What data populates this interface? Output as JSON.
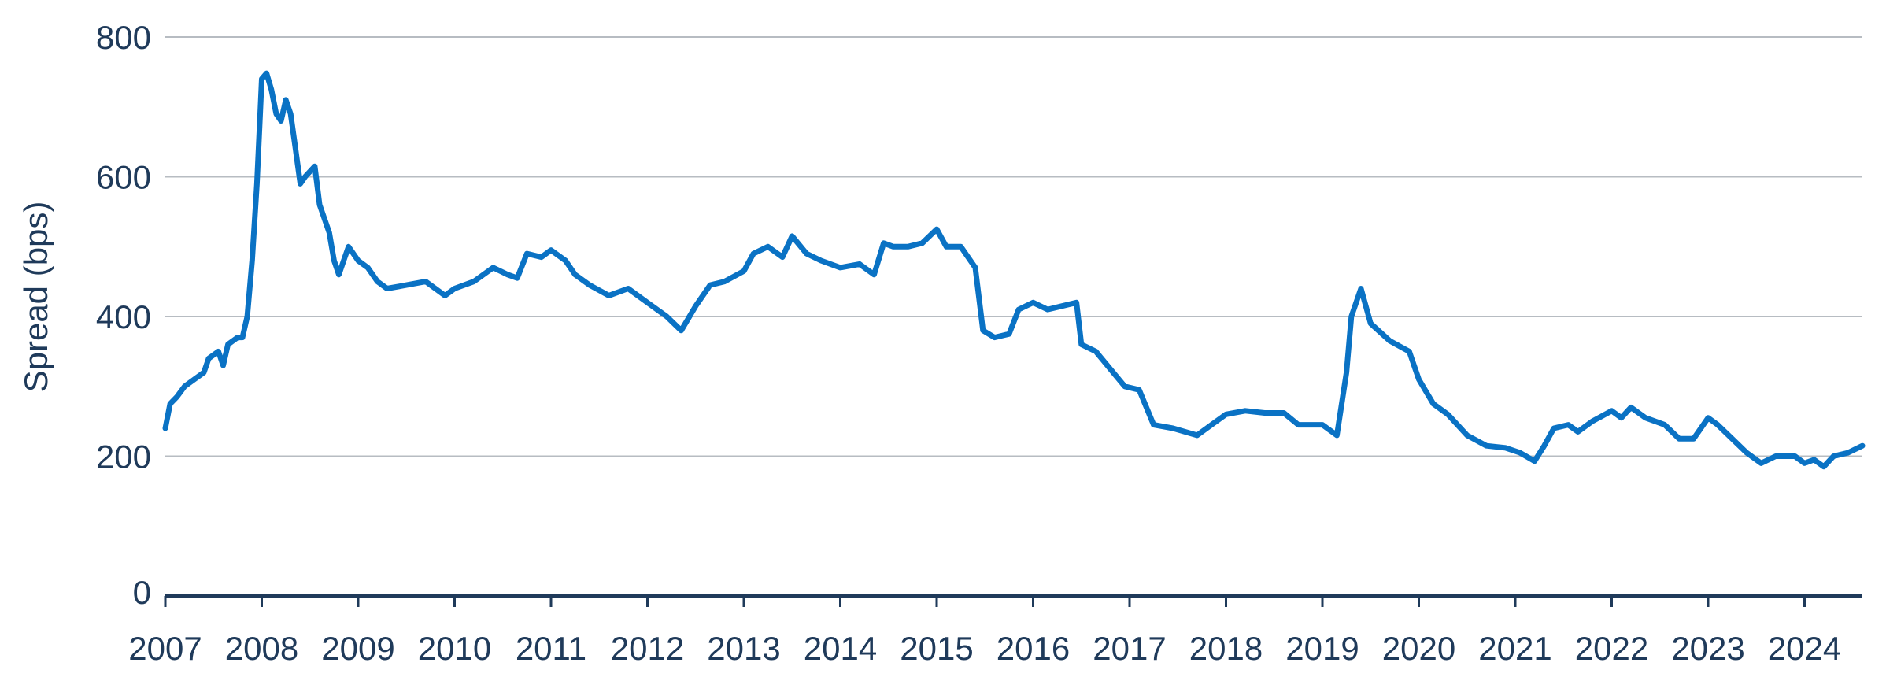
{
  "chart_data": {
    "type": "line",
    "title": "",
    "xlabel": "",
    "ylabel": "Spread (bps)",
    "xlim": [
      2007.0,
      2024.6
    ],
    "ylim": [
      0,
      800
    ],
    "yticks": [
      0,
      200,
      400,
      600,
      800
    ],
    "xticks": [
      "2007",
      "2008",
      "2009",
      "2010",
      "2011",
      "2012",
      "2013",
      "2014",
      "2015",
      "2016",
      "2017",
      "2018",
      "2019",
      "2020",
      "2021",
      "2022",
      "2023",
      "2024"
    ],
    "grid": true,
    "line_color": "#0a72c4",
    "series": [
      {
        "name": "",
        "points": [
          [
            2007.0,
            240
          ],
          [
            2007.05,
            275
          ],
          [
            2007.12,
            285
          ],
          [
            2007.2,
            300
          ],
          [
            2007.3,
            310
          ],
          [
            2007.4,
            320
          ],
          [
            2007.45,
            340
          ],
          [
            2007.55,
            350
          ],
          [
            2007.6,
            330
          ],
          [
            2007.65,
            360
          ],
          [
            2007.75,
            370
          ],
          [
            2007.8,
            370
          ],
          [
            2007.85,
            400
          ],
          [
            2007.9,
            480
          ],
          [
            2007.95,
            590
          ],
          [
            2007.98,
            680
          ],
          [
            2008.0,
            740
          ],
          [
            2008.05,
            748
          ],
          [
            2008.1,
            725
          ],
          [
            2008.15,
            690
          ],
          [
            2008.2,
            680
          ],
          [
            2008.25,
            710
          ],
          [
            2008.3,
            690
          ],
          [
            2008.35,
            640
          ],
          [
            2008.4,
            590
          ],
          [
            2008.45,
            600
          ],
          [
            2008.55,
            615
          ],
          [
            2008.6,
            560
          ],
          [
            2008.7,
            520
          ],
          [
            2008.75,
            480
          ],
          [
            2008.8,
            460
          ],
          [
            2008.85,
            480
          ],
          [
            2008.9,
            500
          ],
          [
            2009.0,
            480
          ],
          [
            2009.1,
            470
          ],
          [
            2009.2,
            450
          ],
          [
            2009.3,
            440
          ],
          [
            2009.5,
            445
          ],
          [
            2009.7,
            450
          ],
          [
            2009.9,
            430
          ],
          [
            2010.0,
            440
          ],
          [
            2010.2,
            450
          ],
          [
            2010.4,
            470
          ],
          [
            2010.55,
            460
          ],
          [
            2010.65,
            455
          ],
          [
            2010.75,
            490
          ],
          [
            2010.9,
            485
          ],
          [
            2011.0,
            495
          ],
          [
            2011.15,
            480
          ],
          [
            2011.25,
            460
          ],
          [
            2011.4,
            445
          ],
          [
            2011.6,
            430
          ],
          [
            2011.8,
            440
          ],
          [
            2012.0,
            420
          ],
          [
            2012.2,
            400
          ],
          [
            2012.35,
            380
          ],
          [
            2012.5,
            415
          ],
          [
            2012.65,
            445
          ],
          [
            2012.8,
            450
          ],
          [
            2013.0,
            465
          ],
          [
            2013.1,
            490
          ],
          [
            2013.25,
            500
          ],
          [
            2013.4,
            485
          ],
          [
            2013.5,
            515
          ],
          [
            2013.65,
            490
          ],
          [
            2013.8,
            480
          ],
          [
            2014.0,
            470
          ],
          [
            2014.2,
            475
          ],
          [
            2014.35,
            460
          ],
          [
            2014.45,
            505
          ],
          [
            2014.55,
            500
          ],
          [
            2014.7,
            500
          ],
          [
            2014.85,
            505
          ],
          [
            2015.0,
            525
          ],
          [
            2015.1,
            500
          ],
          [
            2015.25,
            500
          ],
          [
            2015.4,
            470
          ],
          [
            2015.48,
            380
          ],
          [
            2015.6,
            370
          ],
          [
            2015.75,
            375
          ],
          [
            2015.85,
            410
          ],
          [
            2016.0,
            420
          ],
          [
            2016.15,
            410
          ],
          [
            2016.3,
            415
          ],
          [
            2016.45,
            420
          ],
          [
            2016.5,
            360
          ],
          [
            2016.65,
            350
          ],
          [
            2016.8,
            325
          ],
          [
            2016.95,
            300
          ],
          [
            2017.1,
            295
          ],
          [
            2017.25,
            245
          ],
          [
            2017.45,
            240
          ],
          [
            2017.7,
            230
          ],
          [
            2017.85,
            245
          ],
          [
            2018.0,
            260
          ],
          [
            2018.2,
            265
          ],
          [
            2018.4,
            262
          ],
          [
            2018.6,
            262
          ],
          [
            2018.75,
            245
          ],
          [
            2019.0,
            245
          ],
          [
            2019.15,
            230
          ],
          [
            2019.25,
            320
          ],
          [
            2019.3,
            400
          ],
          [
            2019.4,
            440
          ],
          [
            2019.5,
            390
          ],
          [
            2019.7,
            365
          ],
          [
            2019.9,
            350
          ],
          [
            2020.0,
            310
          ],
          [
            2020.15,
            275
          ],
          [
            2020.3,
            260
          ],
          [
            2020.5,
            230
          ],
          [
            2020.7,
            215
          ],
          [
            2020.9,
            212
          ],
          [
            2021.05,
            205
          ],
          [
            2021.2,
            193
          ],
          [
            2021.3,
            215
          ],
          [
            2021.4,
            240
          ],
          [
            2021.55,
            245
          ],
          [
            2021.65,
            235
          ],
          [
            2021.8,
            250
          ],
          [
            2022.0,
            265
          ],
          [
            2022.1,
            255
          ],
          [
            2022.2,
            270
          ],
          [
            2022.35,
            255
          ],
          [
            2022.55,
            245
          ],
          [
            2022.7,
            225
          ],
          [
            2022.85,
            225
          ],
          [
            2023.0,
            255
          ],
          [
            2023.1,
            245
          ],
          [
            2023.25,
            225
          ],
          [
            2023.4,
            205
          ],
          [
            2023.55,
            190
          ],
          [
            2023.7,
            200
          ],
          [
            2023.9,
            200
          ],
          [
            2024.0,
            190
          ],
          [
            2024.1,
            195
          ],
          [
            2024.2,
            185
          ],
          [
            2024.3,
            200
          ],
          [
            2024.45,
            205
          ],
          [
            2024.6,
            215
          ]
        ]
      }
    ]
  }
}
